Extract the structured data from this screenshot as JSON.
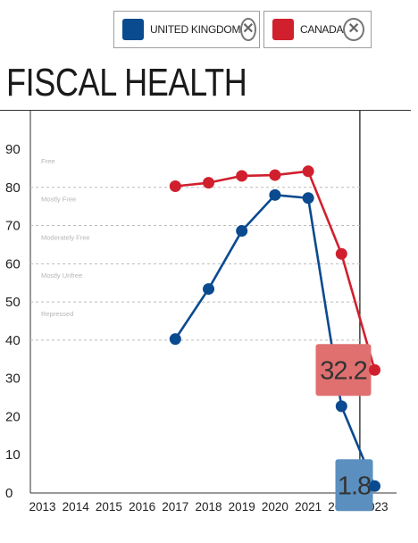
{
  "legend": [
    {
      "label": "UNITED KINGDOM",
      "color": "#0a4a8f",
      "remove_icon": "close-circle-icon"
    },
    {
      "label": "CANADA",
      "color": "#d0202e",
      "remove_icon": "close-circle-icon"
    }
  ],
  "title": "FISCAL HEALTH",
  "chart_data": {
    "type": "line",
    "title": "FISCAL HEALTH",
    "xlabel": "",
    "ylabel": "",
    "categories": [
      "2013",
      "2014",
      "2015",
      "2016",
      "2017",
      "2018",
      "2019",
      "2020",
      "2021",
      "2022",
      "2023"
    ],
    "ylim": [
      0,
      90
    ],
    "yticks": [
      0,
      10,
      20,
      30,
      40,
      50,
      60,
      70,
      80,
      90
    ],
    "grid": "dashed horizontal at 40, 50, 60, 70, 80",
    "bands": [
      "Free",
      "Mostly Free",
      "Moderately Free",
      "Mostly Unfree",
      "Repressed"
    ],
    "highlight_year": "2023",
    "legend_position": "top",
    "series": [
      {
        "name": "UNITED KINGDOM",
        "color": "#0a4a8f",
        "values": [
          null,
          null,
          null,
          null,
          40.3,
          53.4,
          68.6,
          78.0,
          77.2,
          22.7,
          1.8
        ]
      },
      {
        "name": "CANADA",
        "color": "#d0202e",
        "values": [
          null,
          null,
          null,
          null,
          80.3,
          81.2,
          83.0,
          83.2,
          84.2,
          62.6,
          32.2
        ]
      }
    ],
    "value_labels": [
      {
        "series": "CANADA",
        "text": "32.2",
        "color": "#e07070"
      },
      {
        "series": "UNITED KINGDOM",
        "text": "1.8",
        "color": "#5b8fc0"
      }
    ]
  }
}
